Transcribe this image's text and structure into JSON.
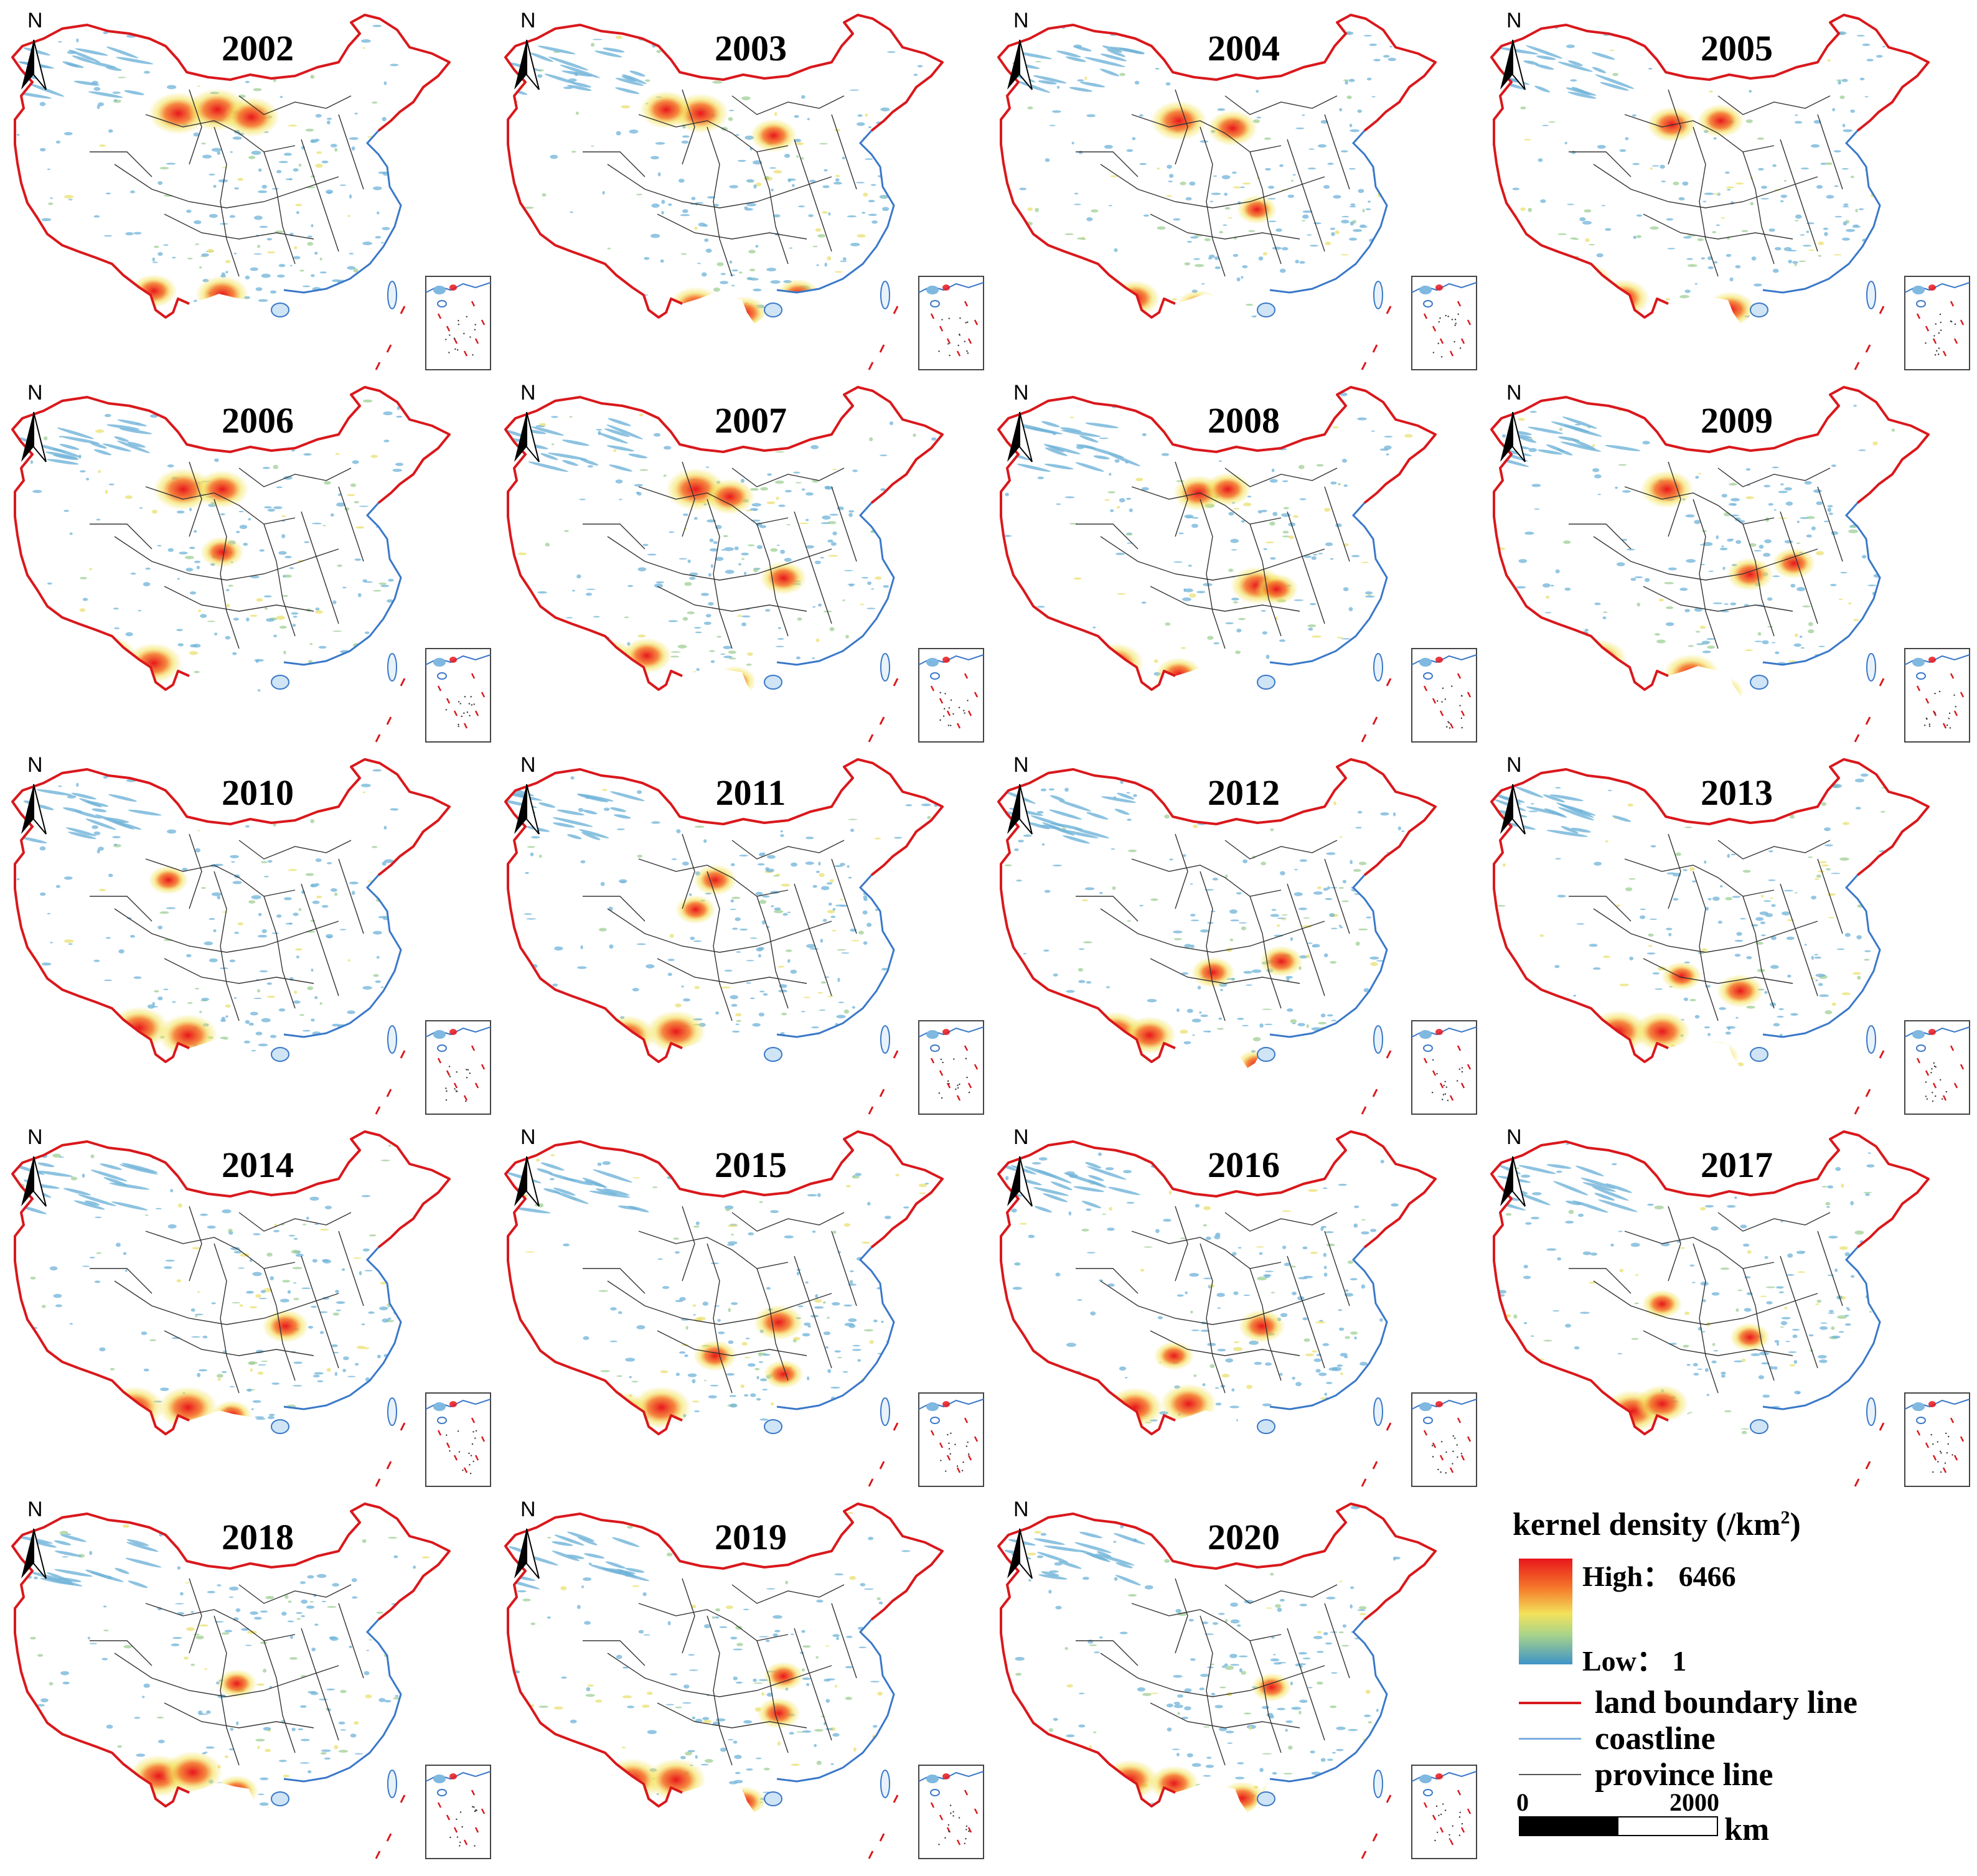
{
  "map": {
    "north_label": "N",
    "icon": "north-arrow-icon",
    "colors": {
      "land_boundary": "#d9181c",
      "coastline": "#3a78c8",
      "province": "#333333",
      "high": "#e8161c",
      "mid": "#f3e25a",
      "low": "#3e93c8"
    },
    "panels": [
      {
        "year": "2002",
        "hot": [
          [
            0.36,
            0.3,
            1.0
          ],
          [
            0.44,
            0.29,
            1.0
          ],
          [
            0.51,
            0.31,
            0.9
          ],
          [
            0.2,
            0.76,
            0.8
          ],
          [
            0.31,
            0.78,
            0.6
          ],
          [
            0.45,
            0.79,
            0.8
          ],
          [
            0.22,
            0.84,
            0.5
          ]
        ]
      },
      {
        "year": "2003",
        "hot": [
          [
            0.42,
            0.3,
            0.9
          ],
          [
            0.35,
            0.29,
            0.8
          ],
          [
            0.57,
            0.36,
            0.6
          ],
          [
            0.19,
            0.78,
            0.9
          ],
          [
            0.26,
            0.82,
            0.8
          ],
          [
            0.41,
            0.82,
            0.8
          ],
          [
            0.51,
            0.84,
            0.6
          ],
          [
            0.62,
            0.79,
            0.5
          ]
        ]
      },
      {
        "year": "2004",
        "hot": [
          [
            0.39,
            0.32,
            0.9
          ],
          [
            0.5,
            0.34,
            0.7
          ],
          [
            0.2,
            0.78,
            0.9
          ],
          [
            0.3,
            0.8,
            0.7
          ],
          [
            0.43,
            0.82,
            0.5
          ],
          [
            0.55,
            0.56,
            0.4
          ]
        ]
      },
      {
        "year": "2005",
        "hot": [
          [
            0.39,
            0.33,
            0.7
          ],
          [
            0.49,
            0.32,
            0.6
          ],
          [
            0.21,
            0.76,
            1.0
          ],
          [
            0.29,
            0.8,
            0.8
          ],
          [
            0.51,
            0.83,
            0.7
          ]
        ]
      },
      {
        "year": "2006",
        "hot": [
          [
            0.37,
            0.31,
            1.0
          ],
          [
            0.45,
            0.31,
            0.8
          ],
          [
            0.22,
            0.76,
            0.8
          ],
          [
            0.31,
            0.78,
            0.9
          ],
          [
            0.45,
            0.48,
            0.5
          ],
          [
            0.46,
            0.84,
            0.6
          ]
        ]
      },
      {
        "year": "2007",
        "hot": [
          [
            0.41,
            0.31,
            1.0
          ],
          [
            0.48,
            0.33,
            0.7
          ],
          [
            0.23,
            0.77,
            0.9
          ],
          [
            0.31,
            0.76,
            0.7
          ],
          [
            0.59,
            0.55,
            0.6
          ],
          [
            0.49,
            0.83,
            0.5
          ]
        ]
      },
      {
        "year": "2008",
        "hot": [
          [
            0.43,
            0.32,
            0.7
          ],
          [
            0.49,
            0.31,
            0.6
          ],
          [
            0.55,
            0.57,
            0.8
          ],
          [
            0.26,
            0.78,
            0.9
          ],
          [
            0.39,
            0.81,
            0.6
          ],
          [
            0.59,
            0.58,
            0.5
          ]
        ]
      },
      {
        "year": "2009",
        "hot": [
          [
            0.38,
            0.31,
            0.8
          ],
          [
            0.55,
            0.54,
            0.6
          ],
          [
            0.24,
            0.77,
            0.9
          ],
          [
            0.43,
            0.81,
            0.9
          ],
          [
            0.49,
            0.86,
            0.6
          ],
          [
            0.64,
            0.51,
            0.5
          ]
        ]
      },
      {
        "year": "2010",
        "hot": [
          [
            0.28,
            0.76,
            1.0
          ],
          [
            0.38,
            0.78,
            1.0
          ],
          [
            0.21,
            0.81,
            0.6
          ],
          [
            0.48,
            0.86,
            0.5
          ],
          [
            0.34,
            0.36,
            0.4
          ]
        ]
      },
      {
        "year": "2011",
        "hot": [
          [
            0.37,
            0.77,
            1.0
          ],
          [
            0.27,
            0.78,
            0.9
          ],
          [
            0.45,
            0.36,
            0.5
          ],
          [
            0.41,
            0.44,
            0.4
          ],
          [
            0.47,
            0.86,
            0.5
          ]
        ]
      },
      {
        "year": "2012",
        "hot": [
          [
            0.26,
            0.77,
            0.9
          ],
          [
            0.33,
            0.78,
            0.8
          ],
          [
            0.46,
            0.61,
            0.5
          ],
          [
            0.6,
            0.58,
            0.5
          ],
          [
            0.55,
            0.86,
            0.5
          ]
        ]
      },
      {
        "year": "2013",
        "hot": [
          [
            0.28,
            0.77,
            1.0
          ],
          [
            0.37,
            0.77,
            0.9
          ],
          [
            0.53,
            0.66,
            0.6
          ],
          [
            0.48,
            0.84,
            0.6
          ],
          [
            0.41,
            0.62,
            0.4
          ]
        ]
      },
      {
        "year": "2014",
        "hot": [
          [
            0.27,
            0.78,
            1.0
          ],
          [
            0.38,
            0.78,
            1.0
          ],
          [
            0.58,
            0.56,
            0.6
          ],
          [
            0.21,
            0.81,
            0.6
          ],
          [
            0.47,
            0.8,
            0.4
          ]
        ]
      },
      {
        "year": "2015",
        "hot": [
          [
            0.34,
            0.78,
            1.0
          ],
          [
            0.26,
            0.79,
            0.8
          ],
          [
            0.58,
            0.55,
            0.7
          ],
          [
            0.45,
            0.64,
            0.5
          ],
          [
            0.59,
            0.69,
            0.4
          ]
        ]
      },
      {
        "year": "2016",
        "hot": [
          [
            0.3,
            0.78,
            0.9
          ],
          [
            0.41,
            0.77,
            0.9
          ],
          [
            0.56,
            0.56,
            0.6
          ],
          [
            0.38,
            0.64,
            0.4
          ]
        ]
      },
      {
        "year": "2017",
        "hot": [
          [
            0.31,
            0.79,
            1.0
          ],
          [
            0.37,
            0.77,
            0.8
          ],
          [
            0.37,
            0.5,
            0.4
          ],
          [
            0.55,
            0.59,
            0.4
          ]
        ]
      },
      {
        "year": "2018",
        "hot": [
          [
            0.32,
            0.77,
            1.0
          ],
          [
            0.39,
            0.76,
            1.0
          ],
          [
            0.23,
            0.82,
            0.6
          ],
          [
            0.48,
            0.81,
            0.5
          ],
          [
            0.48,
            0.52,
            0.4
          ]
        ]
      },
      {
        "year": "2019",
        "hot": [
          [
            0.28,
            0.78,
            1.0
          ],
          [
            0.37,
            0.78,
            1.0
          ],
          [
            0.58,
            0.6,
            0.5
          ],
          [
            0.51,
            0.84,
            0.5
          ],
          [
            0.59,
            0.5,
            0.4
          ]
        ]
      },
      {
        "year": "2020",
        "hot": [
          [
            0.29,
            0.78,
            0.9
          ],
          [
            0.38,
            0.79,
            0.7
          ],
          [
            0.52,
            0.83,
            0.6
          ],
          [
            0.6,
            0.82,
            0.5
          ],
          [
            0.58,
            0.53,
            0.4
          ]
        ]
      }
    ]
  },
  "legend": {
    "title": "kernel density (/km",
    "title_sup": "2",
    "title_close": ")",
    "high_label": "High： 6466",
    "low_label": "Low： 1",
    "items": [
      {
        "label": "land boundary line",
        "color": "#d9181c"
      },
      {
        "label": "coastline",
        "color": "#7aaee0"
      },
      {
        "label": "province line",
        "color": "#555555"
      }
    ],
    "scale": {
      "zero": "0",
      "max": "2000",
      "unit": "km"
    }
  }
}
